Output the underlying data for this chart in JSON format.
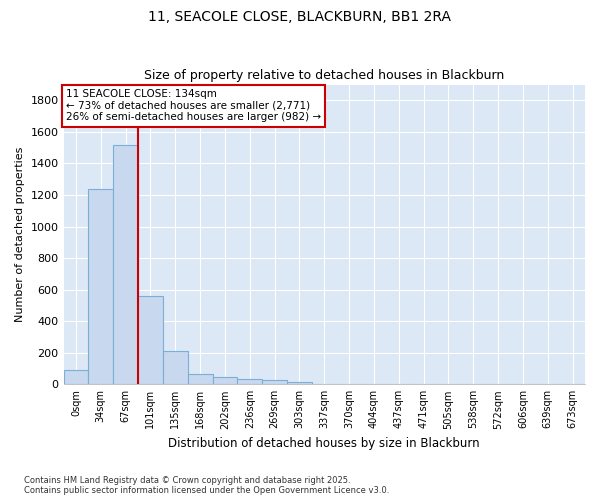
{
  "title": "11, SEACOLE CLOSE, BLACKBURN, BB1 2RA",
  "subtitle": "Size of property relative to detached houses in Blackburn",
  "xlabel": "Distribution of detached houses by size in Blackburn",
  "ylabel": "Number of detached properties",
  "footnote1": "Contains HM Land Registry data © Crown copyright and database right 2025.",
  "footnote2": "Contains public sector information licensed under the Open Government Licence v3.0.",
  "bar_labels": [
    "0sqm",
    "34sqm",
    "67sqm",
    "101sqm",
    "135sqm",
    "168sqm",
    "202sqm",
    "236sqm",
    "269sqm",
    "303sqm",
    "337sqm",
    "370sqm",
    "404sqm",
    "437sqm",
    "471sqm",
    "505sqm",
    "538sqm",
    "572sqm",
    "606sqm",
    "639sqm",
    "673sqm"
  ],
  "bar_values": [
    90,
    1235,
    1515,
    560,
    210,
    65,
    45,
    35,
    28,
    14,
    0,
    0,
    0,
    0,
    0,
    0,
    0,
    0,
    0,
    0,
    0
  ],
  "bar_color": "#c8d8ee",
  "bar_edge_color": "#7ab0d8",
  "plot_bg_color": "#dce8f5",
  "fig_bg_color": "#ffffff",
  "grid_color": "#ffffff",
  "vline_x_index": 3,
  "vline_color": "#cc0000",
  "ann_line1": "11 SEACOLE CLOSE: 134sqm",
  "ann_line2": "← 73% of detached houses are smaller (2,771)",
  "ann_line3": "26% of semi-detached houses are larger (982) →",
  "annotation_box_color": "#cc0000",
  "ylim": [
    0,
    1900
  ],
  "yticks": [
    0,
    200,
    400,
    600,
    800,
    1000,
    1200,
    1400,
    1600,
    1800
  ]
}
